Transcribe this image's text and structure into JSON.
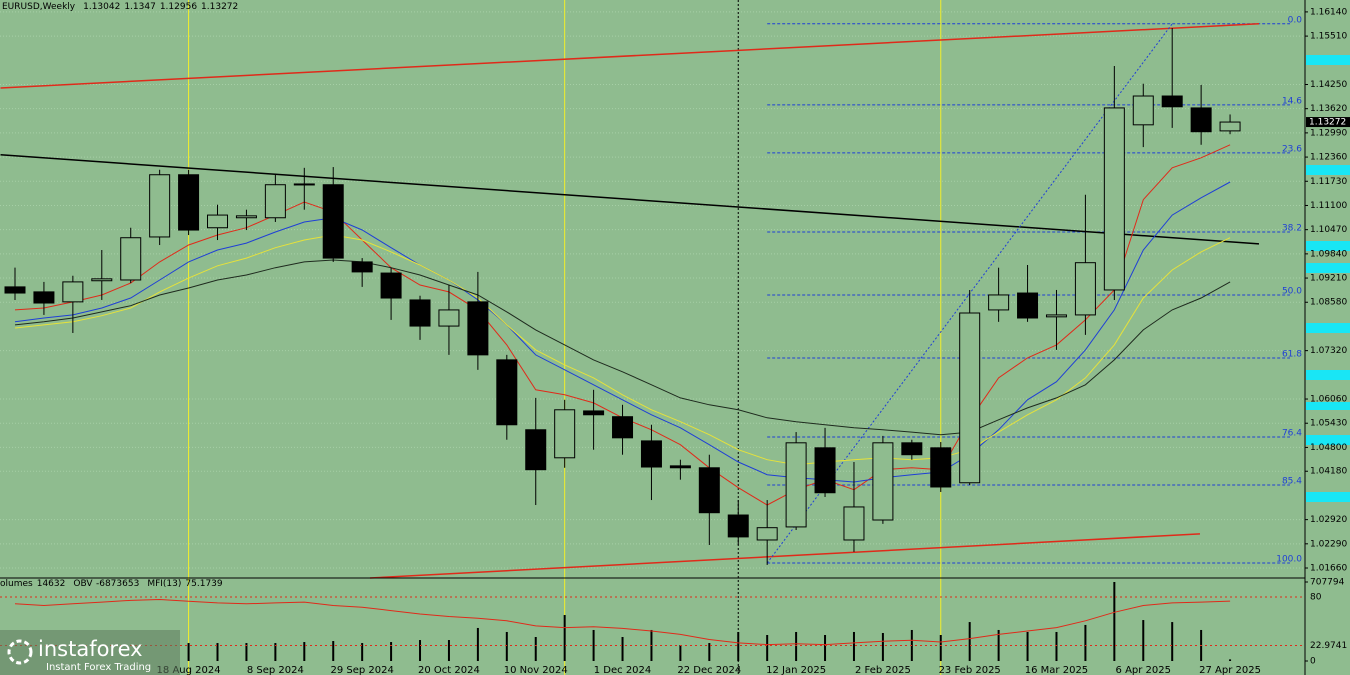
{
  "chart_data": {
    "type": "candlestick",
    "symbol": "EURUSD,Weekly",
    "categories": [
      null,
      null,
      null,
      null,
      null,
      null,
      "18 Aug 2024",
      null,
      null,
      "8 Sep 2024",
      null,
      null,
      "29 Sep 2024",
      null,
      null,
      "20 Oct 2024",
      null,
      null,
      "10 Nov 2024",
      null,
      null,
      "1 Dec 2024",
      null,
      null,
      "22 Dec 2024",
      null,
      null,
      "12 Jan 2025",
      null,
      null,
      "2 Feb 2025",
      null,
      null,
      "23 Feb 2025",
      null,
      null,
      "16 Mar 2025",
      null,
      null,
      "6 Apr 2025",
      null,
      null,
      "27 Apr 2025"
    ],
    "open": [
      1.0898,
      1.0885,
      1.0859,
      1.0914,
      1.0916,
      1.1028,
      1.119,
      1.1052,
      1.1078,
      1.1078,
      1.1164,
      1.1164,
      1.0963,
      1.0934,
      1.0864,
      1.0796,
      1.0859,
      1.0708,
      1.0526,
      1.0453,
      1.0575,
      1.056,
      1.0497,
      1.0432,
      1.0427,
      1.0304,
      1.0239,
      1.0273,
      1.0479,
      1.0239,
      1.0291,
      1.0492,
      1.0479,
      1.0388,
      1.0838,
      1.0882,
      1.082,
      1.0825,
      1.089,
      1.132,
      1.1395,
      1.1364,
      1.13042
    ],
    "high": [
      1.0948,
      1.0911,
      1.0927,
      1.0994,
      1.1052,
      1.1203,
      1.1203,
      1.1112,
      1.1099,
      1.119,
      1.1208,
      1.121,
      1.0973,
      1.0948,
      1.0875,
      1.0903,
      1.0937,
      1.0721,
      1.0609,
      1.0604,
      1.063,
      1.0591,
      1.0539,
      1.0448,
      1.0461,
      1.0343,
      1.0343,
      1.052,
      1.0531,
      1.0442,
      1.051,
      1.05,
      1.0494,
      1.089,
      1.0948,
      1.0955,
      1.089,
      1.1138,
      1.1473,
      1.1427,
      1.1572,
      1.1424,
      1.1347
    ],
    "low": [
      1.0864,
      1.0825,
      1.0778,
      1.0864,
      1.0908,
      1.1007,
      1.1033,
      1.102,
      1.1046,
      1.1067,
      1.1099,
      1.0963,
      1.0898,
      1.0812,
      1.076,
      1.0721,
      1.0682,
      1.05,
      1.033,
      1.0427,
      1.0474,
      1.0461,
      1.0343,
      1.0396,
      1.0226,
      1.0226,
      1.0174,
      1.0265,
      1.0351,
      1.0208,
      1.0281,
      1.0448,
      1.0364,
      1.0382,
      1.0807,
      1.0807,
      1.0734,
      1.0773,
      1.0864,
      1.1262,
      1.1312,
      1.1268,
      1.12956
    ],
    "close": [
      1.0882,
      1.0856,
      1.0911,
      1.0919,
      1.1026,
      1.119,
      1.1046,
      1.1085,
      1.1083,
      1.1164,
      1.1166,
      1.0973,
      1.0937,
      1.0869,
      1.0796,
      1.0838,
      1.0721,
      1.0539,
      1.0422,
      1.0578,
      1.0565,
      1.0505,
      1.0429,
      1.0427,
      1.031,
      1.0247,
      1.0271,
      1.0492,
      1.0362,
      1.0325,
      1.0492,
      1.0461,
      1.0377,
      1.083,
      1.0877,
      1.0817,
      1.0825,
      1.0961,
      1.1364,
      1.1395,
      1.1367,
      1.1302,
      1.13272
    ],
    "ylim": [
      1.014,
      1.1645
    ],
    "yticks": [
      {
        "value": 1.1614,
        "label": "1.16140"
      },
      {
        "value": 1.1551,
        "label": "1.15510"
      },
      {
        "value": 1.1425,
        "label": "1.14250"
      },
      {
        "value": 1.1362,
        "label": "1.13620"
      },
      {
        "value": 1.1299,
        "label": "1.12990"
      },
      {
        "value": 1.1236,
        "label": "1.12360"
      },
      {
        "value": 1.1173,
        "label": "1.11730"
      },
      {
        "value": 1.111,
        "label": "1.11100"
      },
      {
        "value": 1.1047,
        "label": "1.10470"
      },
      {
        "value": 1.0984,
        "label": "1.09840"
      },
      {
        "value": 1.0921,
        "label": "1.09210"
      },
      {
        "value": 1.0858,
        "label": "1.08580"
      },
      {
        "value": 1.0732,
        "label": "1.07320"
      },
      {
        "value": 1.0606,
        "label": "1.06060"
      },
      {
        "value": 1.0543,
        "label": "1.05430"
      },
      {
        "value": 1.048,
        "label": "1.04800"
      },
      {
        "value": 1.0418,
        "label": "1.04180"
      },
      {
        "value": 1.0292,
        "label": "1.02920"
      },
      {
        "value": 1.0229,
        "label": "1.02290"
      },
      {
        "value": 1.0166,
        "label": "1.01660"
      }
    ],
    "grid": true,
    "bull_color": "#8fbc8f",
    "bear_color": "#000000",
    "overlays": [
      {
        "color": "#e02a1a",
        "values": [
          1.0838,
          1.0843,
          1.0859,
          1.0877,
          1.0908,
          1.0963,
          1.1007,
          1.1033,
          1.1052,
          1.1085,
          1.1119,
          1.1093,
          1.102,
          1.0948,
          1.0903,
          1.0885,
          1.0838,
          1.0747,
          1.063,
          1.0617,
          1.0596,
          1.0557,
          1.0526,
          1.0487,
          1.0427,
          1.0375,
          1.033,
          1.037,
          1.0396,
          1.037,
          1.0422,
          1.0427,
          1.0422,
          1.0552,
          1.0661,
          1.0713,
          1.0747,
          1.0812,
          1.089,
          1.1125,
          1.1208,
          1.1234,
          1.1268
        ]
      },
      {
        "color": "#1f3fd6",
        "values": [
          1.0807,
          1.0817,
          1.0825,
          1.0843,
          1.0869,
          1.0916,
          1.0963,
          1.0994,
          1.1012,
          1.1041,
          1.1067,
          1.1078,
          1.1046,
          1.1,
          1.0955,
          1.0916,
          1.0864,
          1.0799,
          1.0721,
          1.0682,
          1.0643,
          1.0604,
          1.0565,
          1.0531,
          1.0487,
          1.0442,
          1.0409,
          1.0401,
          1.0396,
          1.039,
          1.0401,
          1.0409,
          1.0416,
          1.0461,
          1.0526,
          1.0604,
          1.0651,
          1.0734,
          1.0838,
          1.0994,
          1.1085,
          1.113,
          1.1171
        ]
      },
      {
        "color": "#e6e23a",
        "values": [
          1.0791,
          1.0799,
          1.0807,
          1.0823,
          1.0843,
          1.0885,
          1.0921,
          1.0953,
          1.0973,
          1.1,
          1.102,
          1.1033,
          1.102,
          1.0989,
          1.0955,
          1.0916,
          1.0869,
          1.0799,
          1.0734,
          1.0695,
          1.0661,
          1.0617,
          1.0578,
          1.0547,
          1.0513,
          1.0474,
          1.0448,
          1.0435,
          1.0442,
          1.0448,
          1.0453,
          1.0448,
          1.0453,
          1.0474,
          1.052,
          1.0565,
          1.0604,
          1.0661,
          1.0747,
          1.0869,
          1.0942,
          1.0989,
          1.1026
        ]
      },
      {
        "color": "#1e2a1e",
        "values": [
          1.0799,
          1.0807,
          1.0817,
          1.0833,
          1.0849,
          1.0877,
          1.0895,
          1.0916,
          1.0929,
          1.0948,
          1.0963,
          1.0968,
          1.0963,
          1.0948,
          1.0929,
          1.0903,
          1.0877,
          1.0833,
          1.0786,
          1.0747,
          1.0708,
          1.0677,
          1.0643,
          1.0609,
          1.0591,
          1.0578,
          1.0557,
          1.0547,
          1.0539,
          1.0531,
          1.0526,
          1.052,
          1.0513,
          1.052,
          1.0552,
          1.0583,
          1.0609,
          1.0643,
          1.0708,
          1.0786,
          1.0838,
          1.0869,
          1.0911
        ]
      }
    ],
    "trendlines": [
      {
        "color": "#e02a1a",
        "from": [
          -0.5,
          1.1416
        ],
        "to": [
          43,
          1.1583
        ]
      },
      {
        "color": "#e02a1a",
        "from": [
          12.27,
          1.014
        ],
        "to": [
          40.96,
          1.0255
        ]
      },
      {
        "color": "#000000",
        "from": [
          -0.5,
          1.1242
        ],
        "to": [
          43,
          1.101
        ]
      },
      {
        "color": "#1f3fd6",
        "from": [
          26,
          1.0179
        ],
        "to": [
          40,
          1.1583
        ],
        "dash": true
      }
    ],
    "fib_color": "#1f3fd6",
    "fib_levels": [
      {
        "label": "0.0",
        "price": 1.1583
      },
      {
        "label": "14.6",
        "price": 1.1372
      },
      {
        "label": "23.6",
        "price": 1.1247
      },
      {
        "label": "38.2",
        "price": 1.1041
      },
      {
        "label": "50.0",
        "price": 1.0877
      },
      {
        "label": "61.8",
        "price": 1.0713
      },
      {
        "label": "76.4",
        "price": 1.0507
      },
      {
        "label": "85.4",
        "price": 1.0382
      },
      {
        "label": "100.0",
        "price": 1.0179
      }
    ],
    "fib_start": 26,
    "vlines": [
      {
        "index": 6,
        "color": "#f2ee2a"
      },
      {
        "index": 19,
        "color": "#f2ee2a"
      },
      {
        "index": 32,
        "color": "#f2ee2a"
      },
      {
        "index": 25,
        "color": "#000000",
        "dash": true
      }
    ],
    "volume_label": "olumes",
    "volume": [
      null,
      null,
      null,
      null,
      null,
      null,
      161000,
      161000,
      161000,
      161000,
      170000,
      179000,
      161000,
      170000,
      188000,
      188000,
      296000,
      260000,
      215000,
      412000,
      278000,
      215000,
      278000,
      143000,
      161000,
      260000,
      233000,
      260000,
      233000,
      260000,
      251000,
      278000,
      233000,
      349000,
      278000,
      260000,
      260000,
      323000,
      707794,
      367000,
      349000,
      278000,
      14632
    ],
    "vol_lim": [
      -35840,
      743680
    ],
    "vol_ticks": [
      707794,
      0
    ],
    "obv_label": "OBV",
    "obv": -6873653,
    "mfi_label": "MFI(13)",
    "mfi_color": "#e02a1a",
    "mfi": [
      72,
      70,
      72,
      74,
      76,
      77,
      75,
      73,
      72,
      73,
      74,
      70,
      68,
      64,
      60,
      57,
      55,
      52,
      46,
      44,
      45,
      43,
      40,
      36,
      30,
      26,
      24,
      25,
      24,
      26,
      28,
      29,
      27,
      31,
      36,
      40,
      44,
      52,
      62,
      70,
      73,
      74,
      75.1739
    ],
    "mfi_lim": [
      0,
      102.35
    ],
    "mfi_ticks": [
      80,
      22.9741
    ]
  },
  "watermark": {
    "name": "instaforex",
    "tagline": "Instant Forex Trading"
  }
}
